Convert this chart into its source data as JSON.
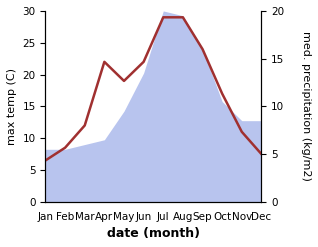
{
  "months": [
    "Jan",
    "Feb",
    "Mar",
    "Apr",
    "May",
    "Jun",
    "Jul",
    "Aug",
    "Sep",
    "Oct",
    "Nov",
    "Dec"
  ],
  "month_indices": [
    0,
    1,
    2,
    3,
    4,
    5,
    6,
    7,
    8,
    9,
    10,
    11
  ],
  "temperature": [
    6.5,
    8.5,
    12.0,
    22.0,
    19.0,
    22.0,
    29.0,
    29.0,
    24.0,
    17.0,
    11.0,
    7.5
  ],
  "precipitation_right": [
    5.5,
    5.5,
    6.0,
    6.5,
    9.5,
    13.5,
    20.0,
    19.5,
    16.0,
    10.5,
    8.5,
    8.5
  ],
  "temp_color": "#a03030",
  "precip_color": "#b8c4ee",
  "background_color": "#ffffff",
  "left_ylim": [
    0,
    30
  ],
  "right_ylim": [
    0,
    20
  ],
  "left_ylabel": "max temp (C)",
  "right_ylabel": "med. precipitation (kg/m2)",
  "xlabel": "date (month)",
  "left_yticks": [
    0,
    5,
    10,
    15,
    20,
    25,
    30
  ],
  "right_yticks": [
    0,
    5,
    10,
    15,
    20
  ],
  "temp_linewidth": 1.8,
  "xlabel_fontsize": 9,
  "ylabel_fontsize": 8,
  "tick_fontsize": 7.5,
  "scale_factor": 1.5
}
